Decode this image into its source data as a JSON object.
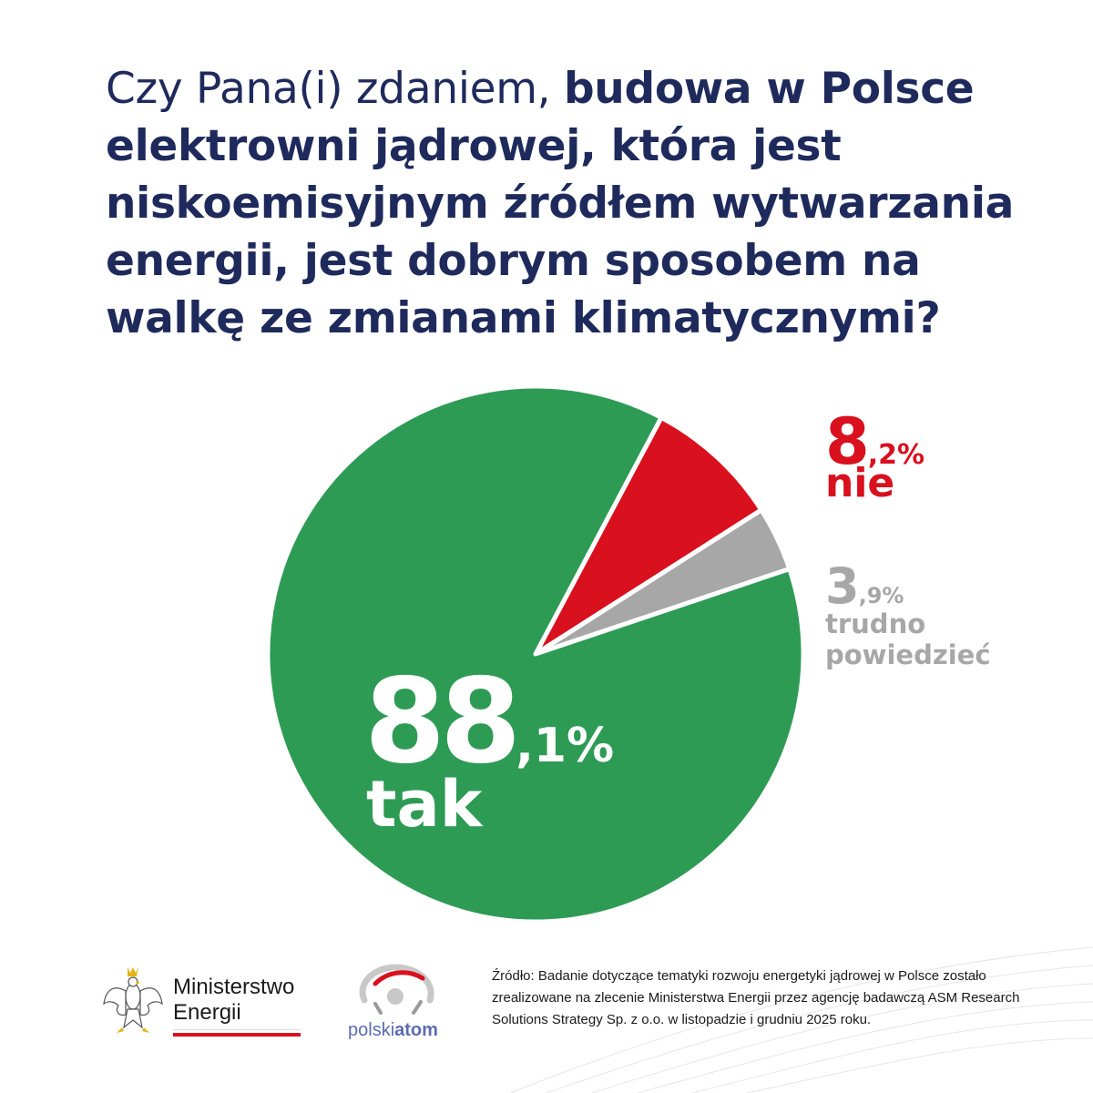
{
  "question": {
    "normal": "Czy Pana(i) zdaniem, ",
    "bold": "budowa w Polsce elektrowni jądrowej, która jest niskoemisyjnym źródłem wytwarzania energii, jest dobrym sposobem na walkę ze zmianami klimatycznymi?"
  },
  "chart_data": {
    "type": "pie",
    "title": "",
    "slices": [
      {
        "name": "tak",
        "value": 88.1,
        "big": "88",
        "small": ",1%",
        "color": "#2e9b55"
      },
      {
        "name": "nie",
        "value": 8.2,
        "big": "8",
        "small": ",2%",
        "color": "#d9101e"
      },
      {
        "name": "trudno powiedzieć",
        "value": 3.9,
        "big": "3",
        "small": ",9%",
        "color": "#a7a7a7"
      }
    ]
  },
  "logos": {
    "ministry_line1": "Ministerstwo",
    "ministry_line2": "Energii",
    "polskiatom_part1": "polski",
    "polskiatom_part2": "atom"
  },
  "source": "Źródło: Badanie dotyczące tematyki rozwoju energetyki jądrowej w Polsce zostało zrealizowane na zlecenie Ministerstwa Energii przez agencję badawczą ASM Research Solutions Strategy Sp. z o.o. w listopadzie i grudniu 2025 roku."
}
